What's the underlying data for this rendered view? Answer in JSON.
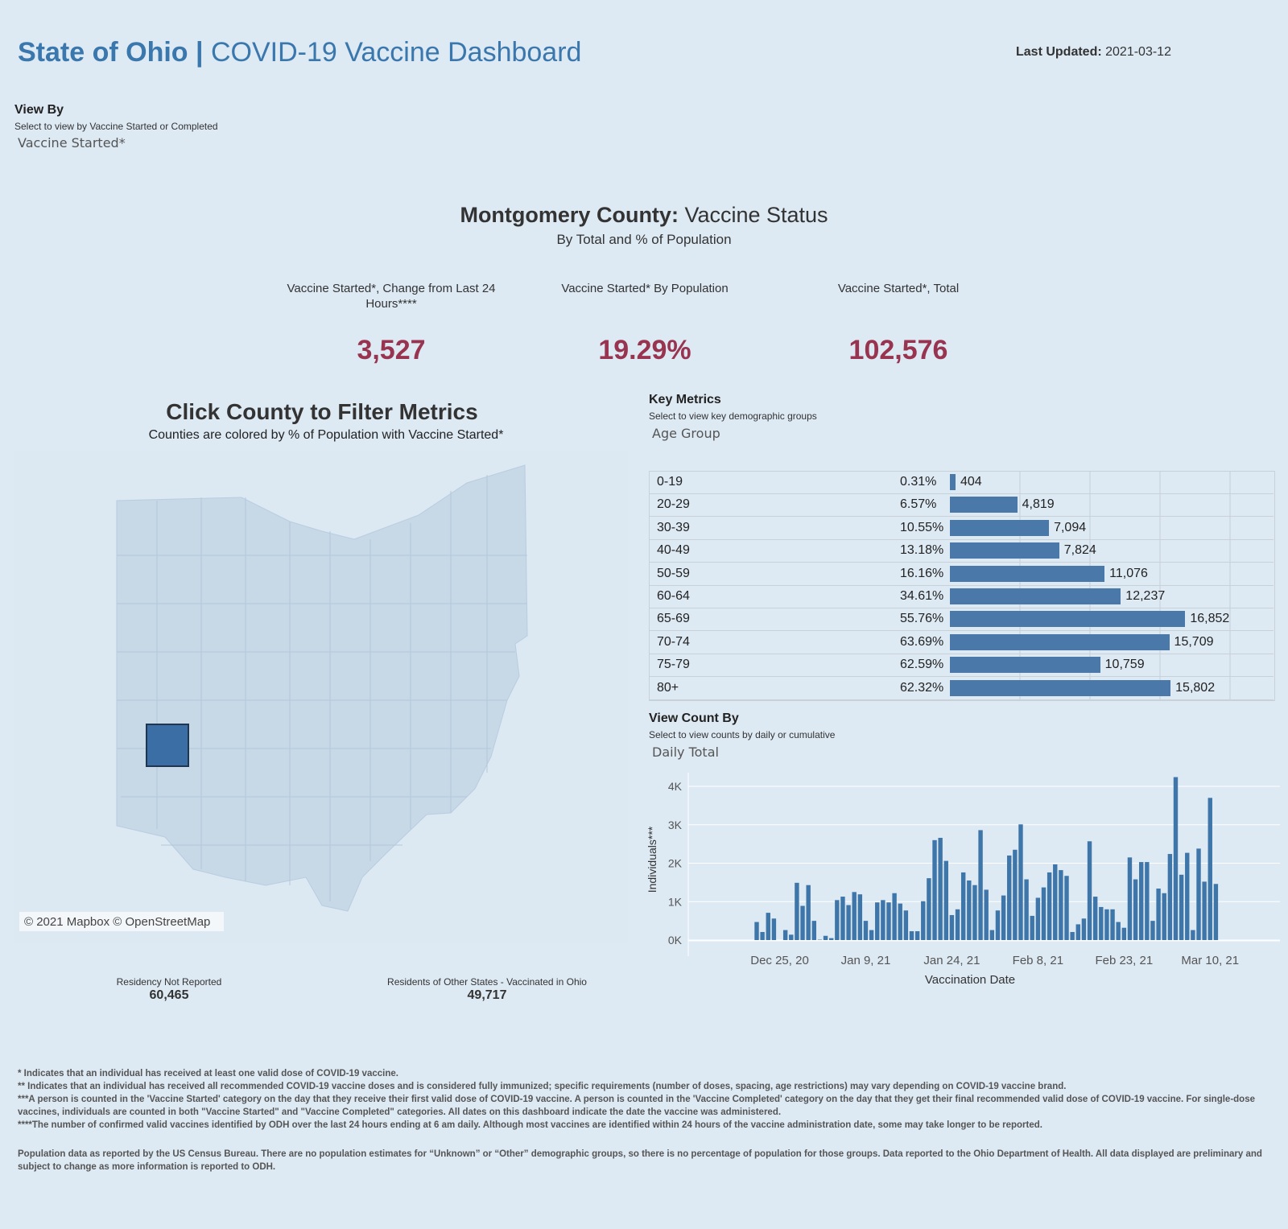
{
  "header": {
    "title_bold": "State of Ohio",
    "title_sep": " | ",
    "title_rest": "COVID-19 Vaccine Dashboard",
    "last_updated_label": "Last Updated:",
    "last_updated_value": "2021-03-12"
  },
  "view_by": {
    "label": "View By",
    "hint": "Select to view by Vaccine Started or Completed",
    "value": "Vaccine Started*"
  },
  "status": {
    "county": "Montgomery County:",
    "title_rest": " Vaccine Status",
    "subtitle": "By Total and % of Population"
  },
  "kpis": [
    {
      "label": "Vaccine Started*, Change from Last 24 Hours****",
      "value": "3,527"
    },
    {
      "label": "Vaccine Started* By Population",
      "value": "19.29%"
    },
    {
      "label": "Vaccine Started*, Total",
      "value": "102,576"
    }
  ],
  "map": {
    "title": "Click County to Filter Metrics",
    "subtitle": "Counties are colored by % of Population with Vaccine Started*",
    "attribution": "© 2021 Mapbox © OpenStreetMap",
    "selected_county": "Montgomery",
    "colors": {
      "state": "#c7d8e7",
      "selected": "#3b6ea5"
    }
  },
  "residency": [
    {
      "label": "Residency Not Reported",
      "value": "60,465"
    },
    {
      "label": "Residents of Other States - Vaccinated in Ohio",
      "value": "49,717"
    }
  ],
  "key_metrics": {
    "label": "Key Metrics",
    "hint": "Select to view key demographic groups",
    "value": "Age Group"
  },
  "age_table": {
    "bar_color": "#4a78a8",
    "rows": [
      {
        "group": "0-19",
        "pct": "0.31%",
        "count": 404,
        "count_label": "404"
      },
      {
        "group": "20-29",
        "pct": "6.57%",
        "count": 4819,
        "count_label": "4,819"
      },
      {
        "group": "30-39",
        "pct": "10.55%",
        "count": 7094,
        "count_label": "7,094"
      },
      {
        "group": "40-49",
        "pct": "13.18%",
        "count": 7824,
        "count_label": "7,824"
      },
      {
        "group": "50-59",
        "pct": "16.16%",
        "count": 11076,
        "count_label": "11,076"
      },
      {
        "group": "60-64",
        "pct": "34.61%",
        "count": 12237,
        "count_label": "12,237"
      },
      {
        "group": "65-69",
        "pct": "55.76%",
        "count": 16852,
        "count_label": "16,852"
      },
      {
        "group": "70-74",
        "pct": "63.69%",
        "count": 15709,
        "count_label": "15,709"
      },
      {
        "group": "75-79",
        "pct": "62.59%",
        "count": 10759,
        "count_label": "10,759"
      },
      {
        "group": "80+",
        "pct": "62.32%",
        "count": 15802,
        "count_label": "15,802"
      }
    ]
  },
  "view_count": {
    "label": "View Count By",
    "hint": "Select to view counts by daily or cumulative",
    "value": "Daily Total"
  },
  "chart_data": {
    "type": "bar",
    "xlabel": "Vaccination Date",
    "ylabel": "Individuals***",
    "ylim": [
      0,
      4300
    ],
    "yticks": [
      {
        "v": 0,
        "label": "0K"
      },
      {
        "v": 1000,
        "label": "1K"
      },
      {
        "v": 2000,
        "label": "2K"
      },
      {
        "v": 3000,
        "label": "3K"
      },
      {
        "v": 4000,
        "label": "4K"
      }
    ],
    "xticks": [
      {
        "date": "2020-12-25",
        "label": "Dec 25, 20"
      },
      {
        "date": "2021-01-09",
        "label": "Jan 9, 21"
      },
      {
        "date": "2021-01-24",
        "label": "Jan 24, 21"
      },
      {
        "date": "2021-02-08",
        "label": "Feb 8, 21"
      },
      {
        "date": "2021-02-23",
        "label": "Feb 23, 21"
      },
      {
        "date": "2021-03-10",
        "label": "Mar 10, 21"
      }
    ],
    "start_date": "2020-12-21",
    "color": "#3f76aa",
    "grid": true,
    "values": [
      470,
      210,
      710,
      560,
      0,
      260,
      140,
      1490,
      890,
      1430,
      500,
      10,
      110,
      50,
      1040,
      1130,
      910,
      1250,
      1190,
      500,
      260,
      980,
      1040,
      980,
      1220,
      950,
      770,
      230,
      230,
      1010,
      1610,
      2600,
      2660,
      2060,
      650,
      800,
      1760,
      1550,
      1430,
      2860,
      1310,
      260,
      770,
      1160,
      2200,
      2350,
      3010,
      1580,
      630,
      1100,
      1370,
      1760,
      1970,
      1820,
      1670,
      210,
      410,
      560,
      2570,
      1130,
      860,
      800,
      800,
      470,
      320,
      2150,
      1580,
      2030,
      2030,
      500,
      1340,
      1220,
      2240,
      4240,
      1700,
      2270,
      260,
      2380,
      1520,
      3700,
      1460
    ]
  },
  "footnotes": [
    "* Indicates that an individual has received at least one valid dose of COVID-19 vaccine.",
    "** Indicates that an individual has received all recommended COVID-19 vaccine doses and is considered fully immunized; specific requirements (number of doses, spacing, age restrictions) may vary depending on COVID-19 vaccine brand.",
    "***A person is counted in the 'Vaccine Started' category on the day that they receive their first valid dose of COVID-19 vaccine.  A person is counted in the 'Vaccine Completed' category on the day that they get their final recommended valid dose of COVID-19 vaccine. For single-dose vaccines, individuals are counted in both \"Vaccine Started\" and \"Vaccine Completed\" categories. All dates on this dashboard indicate the date the vaccine was administered.",
    "****The number of confirmed valid vaccines identified by ODH over the last 24 hours ending at 6 am daily. Although most vaccines are identified within 24 hours of the vaccine administration date, some may take longer to be reported.",
    "Population data as reported by the US Census Bureau. There are no population estimates for “Unknown” or “Other” demographic groups, so there is no percentage of population for those groups.  Data reported to the Ohio Department of Health.  All data displayed are preliminary and subject to change as more information is reported to ODH."
  ]
}
